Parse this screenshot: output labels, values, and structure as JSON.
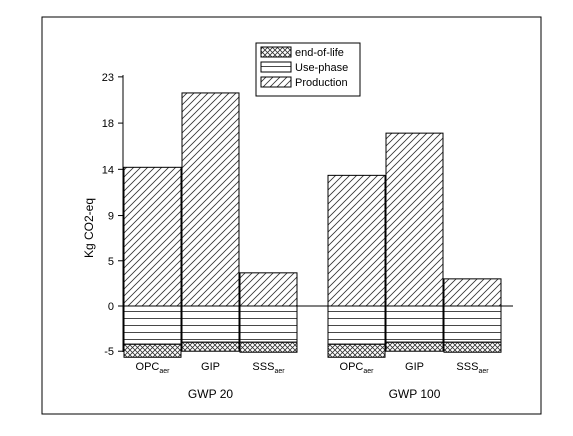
{
  "chart_data": {
    "type": "bar",
    "stacked": true,
    "ylabel": "Kg CO2-eq",
    "ylim": [
      -6.5,
      26
    ],
    "yticks": [
      "23",
      "18",
      "14",
      "9",
      "5",
      "0",
      "-5"
    ],
    "ytick_values": [
      22.8,
      18.2,
      13.6,
      9.0,
      4.5,
      0,
      -4.5
    ],
    "groups": [
      {
        "label": "GWP 20",
        "categories": [
          {
            "label": "OPC",
            "sub": "aer"
          },
          {
            "label": "GIP",
            "sub": ""
          },
          {
            "label": "SSS",
            "sub": "aer"
          }
        ]
      },
      {
        "label": "GWP 100",
        "categories": [
          {
            "label": "OPC",
            "sub": "aer"
          },
          {
            "label": "GIP",
            "sub": ""
          },
          {
            "label": "SSS",
            "sub": "aer"
          }
        ]
      }
    ],
    "series": [
      {
        "name": "end-of-life",
        "pattern": "crosshatch",
        "values": [
          -1.3,
          -0.9,
          -1.0,
          -1.3,
          -0.9,
          -1.0
        ]
      },
      {
        "name": "Use-phase",
        "pattern": "horizontal",
        "values": [
          -3.8,
          -3.6,
          -3.6,
          -3.8,
          -3.6,
          -3.6
        ]
      },
      {
        "name": "Production",
        "pattern": "diagonal",
        "values": [
          13.8,
          21.2,
          3.3,
          13.0,
          17.2,
          2.7
        ]
      }
    ],
    "legend_position": "top-center",
    "grid": false
  }
}
